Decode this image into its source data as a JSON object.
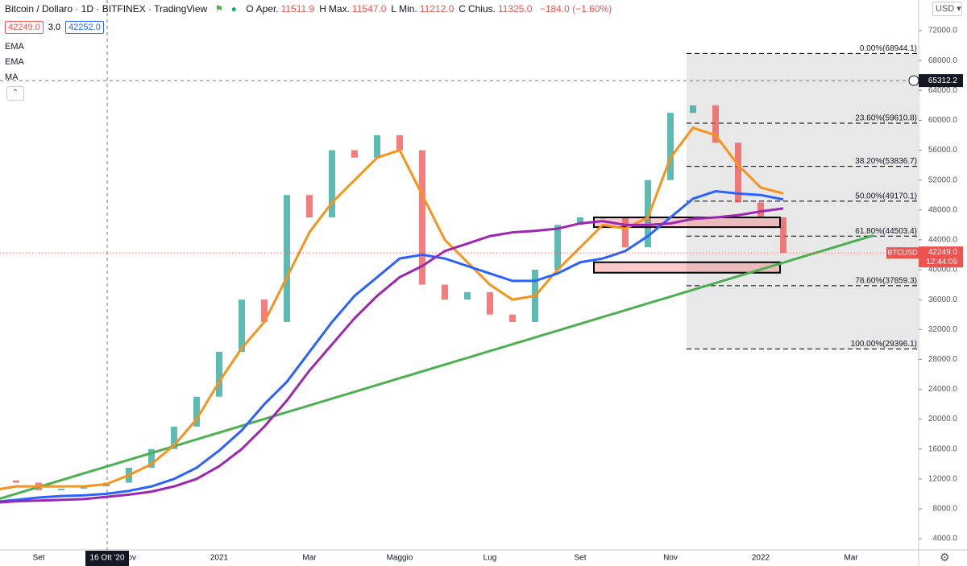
{
  "header": {
    "title": "Bitcoin / Dollaro · 1D · BITFINEX · TradingView",
    "ohlc": [
      {
        "key": "O",
        "name": "Aper.",
        "value": "11511.9"
      },
      {
        "key": "H",
        "name": "Max.",
        "value": "11547.0"
      },
      {
        "key": "L",
        "name": "Min.",
        "value": "11212.0"
      },
      {
        "key": "C",
        "name": "Chius.",
        "value": "11325.0"
      }
    ],
    "change": "−184.0 (−1.60%)",
    "bid": "42249.0",
    "spread": "3.0",
    "ask": "42252.0",
    "currency": "USD"
  },
  "chart_data": {
    "type": "line",
    "categories": [
      null,
      null,
      "Set",
      null,
      null,
      null,
      "Nov",
      null,
      null,
      null,
      "2021",
      null,
      null,
      null,
      "Mar",
      null,
      null,
      null,
      "Maggio",
      null,
      null,
      null,
      "Lug",
      null,
      null,
      null,
      "Set",
      null,
      null,
      null,
      "Nov",
      null,
      null,
      null,
      "2022",
      null,
      null,
      null,
      "Mar",
      null,
      null,
      null
    ],
    "ylim": [
      2500,
      76100
    ],
    "yticks": [
      {
        "value": 4000,
        "label": "4000.0"
      },
      {
        "value": 8000,
        "label": "8000.0"
      },
      {
        "value": 12000,
        "label": "12000.0"
      },
      {
        "value": 16000,
        "label": "16000.0"
      },
      {
        "value": 20000,
        "label": "20000.0"
      },
      {
        "value": 24000,
        "label": "24000.0"
      },
      {
        "value": 28000,
        "label": "28000.0"
      },
      {
        "value": 32000,
        "label": "32000.0"
      },
      {
        "value": 36000,
        "label": "36000.0"
      },
      {
        "value": 40000,
        "label": "40000.0"
      },
      {
        "value": 44000,
        "label": "44000.0"
      },
      {
        "value": 48000,
        "label": "48000.0"
      },
      {
        "value": 52000,
        "label": "52000.0"
      },
      {
        "value": 56000,
        "label": "56000.0"
      },
      {
        "value": 60000,
        "label": "60000.0"
      },
      {
        "value": 64000,
        "label": "64000.0"
      },
      {
        "value": 68000,
        "label": "68000.0"
      },
      {
        "value": 72000,
        "label": "72000.0"
      }
    ],
    "candles": {
      "name": "BTCUSD",
      "up_color": "#26a69a",
      "down_color": "#ef5350",
      "values": [
        11800,
        11500,
        10500,
        10700,
        11000,
        11500,
        13500,
        16000,
        19000,
        23000,
        29000,
        36000,
        33000,
        50000,
        47000,
        56000,
        55000,
        58000,
        56000,
        38000,
        36000,
        37000,
        34000,
        33000,
        40000,
        46000,
        47000,
        47000,
        43000,
        52000,
        61000,
        62000,
        57000,
        49000,
        47000,
        42249,
        null,
        null,
        null,
        null,
        null,
        null
      ]
    },
    "series": [
      {
        "name": "EMA",
        "color": "#f7931a",
        "values": [
          10500,
          11000,
          11000,
          11000,
          11000,
          11300,
          12500,
          14000,
          16500,
          20000,
          25000,
          29500,
          33000,
          39000,
          45000,
          49000,
          52000,
          55000,
          56000,
          50000,
          44000,
          41000,
          38000,
          36000,
          36500,
          40000,
          43000,
          46000,
          45500,
          47000,
          55000,
          59000,
          58000,
          54000,
          51000,
          50200,
          null,
          null,
          null,
          null,
          null,
          null
        ]
      },
      {
        "name": "EMA",
        "color": "#2962ff",
        "values": [
          8900,
          9200,
          9500,
          9700,
          9800,
          10000,
          10400,
          11000,
          12000,
          13500,
          15800,
          18500,
          22000,
          25000,
          29000,
          33000,
          36500,
          39000,
          41500,
          42000,
          41500,
          40500,
          39500,
          38500,
          38500,
          39500,
          41000,
          41500,
          42500,
          44500,
          47000,
          49500,
          50500,
          50200,
          50000,
          49400,
          null,
          null,
          null,
          null,
          null,
          null
        ]
      },
      {
        "name": "MA",
        "color": "#9c27b0",
        "values": [
          8800,
          9000,
          9100,
          9200,
          9300,
          9600,
          9900,
          10300,
          11000,
          12000,
          13700,
          16000,
          19000,
          22500,
          26500,
          30000,
          33500,
          36500,
          39000,
          40500,
          42500,
          43500,
          44500,
          45000,
          45200,
          45500,
          46200,
          46500,
          46000,
          46000,
          46200,
          46800,
          47000,
          47300,
          47800,
          48200,
          null,
          null,
          null,
          null,
          null,
          null
        ]
      }
    ],
    "trendline": {
      "color": "#4caf50",
      "values": [
        9100,
        10010,
        10920,
        11830,
        12740,
        13650,
        14560,
        15470,
        16380,
        17290,
        18200,
        19110,
        20020,
        20930,
        21840,
        22750,
        23660,
        24570,
        25480,
        26390,
        27300,
        28210,
        29120,
        30030,
        30940,
        31850,
        32760,
        33670,
        34580,
        35490,
        36400,
        37310,
        38220,
        39130,
        40040,
        40950,
        41860,
        42770,
        43680,
        44590,
        null,
        null
      ]
    },
    "fib": [
      {
        "value": 68944.1,
        "label": "0.00%(68944.1)"
      },
      {
        "value": 59610.8,
        "label": "23.60%(59610.8)"
      },
      {
        "value": 53836.7,
        "label": "38.20%(53836.7)"
      },
      {
        "value": 49170.1,
        "label": "50.00%(49170.1)"
      },
      {
        "value": 44503.4,
        "label": "61.80%(44503.4)"
      },
      {
        "value": 37859.3,
        "label": "78.60%(37859.3)"
      },
      {
        "value": 29396.1,
        "label": "100.00%(29396.1)"
      }
    ],
    "zones": [
      {
        "top": 47000,
        "bottom": 45700
      },
      {
        "top": 41000,
        "bottom": 39600
      }
    ],
    "crosshair": {
      "x_label": "16 Ott '20",
      "y_value": 65312.2,
      "y_label": "65312.2"
    },
    "price": {
      "name": "BTCUSD",
      "value": 42249.0,
      "label": "42249.0",
      "countdown": "12:44:06"
    }
  }
}
